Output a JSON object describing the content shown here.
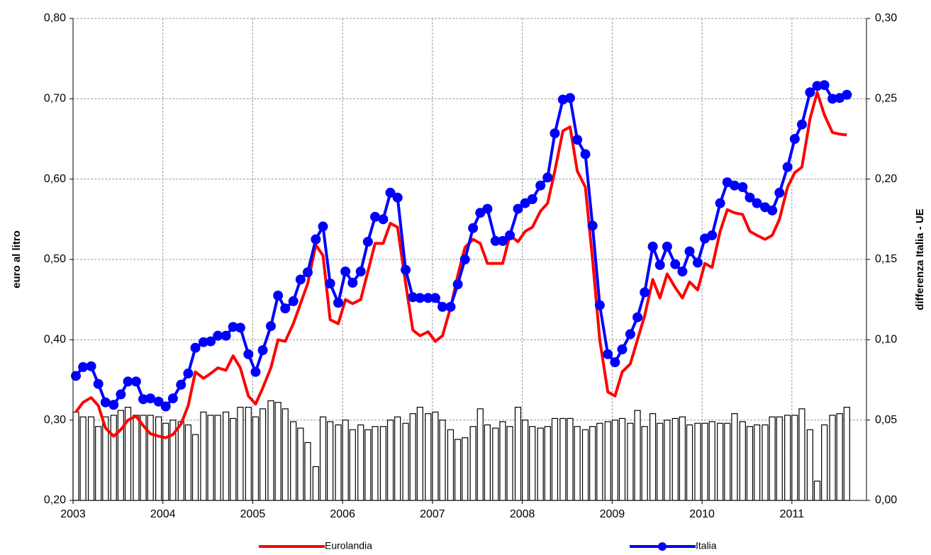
{
  "chart_data": {
    "type": "line",
    "y_label": "euro al litro",
    "y2_label": "differenza Italia - UE",
    "xlim": [
      2003,
      2011.83
    ],
    "xticks": [
      2003,
      2004,
      2005,
      2006,
      2007,
      2008,
      2009,
      2010,
      2011
    ],
    "ylim": [
      0.2,
      0.8
    ],
    "yticks": [
      {
        "value": 0.2,
        "label": "0,20"
      },
      {
        "value": 0.3,
        "label": "0,30"
      },
      {
        "value": 0.4,
        "label": "0,40"
      },
      {
        "value": 0.5,
        "label": "0,50"
      },
      {
        "value": 0.6,
        "label": "0,60"
      },
      {
        "value": 0.7,
        "label": "0,70"
      },
      {
        "value": 0.8,
        "label": "0,80"
      }
    ],
    "y2lim": [
      0,
      0.3
    ],
    "y2ticks": [
      {
        "value": 0,
        "label": "0,00"
      },
      {
        "value": 0.05,
        "label": "0,05"
      },
      {
        "value": 0.1,
        "label": "0,10"
      },
      {
        "value": 0.15,
        "label": "0,15"
      },
      {
        "value": 0.2,
        "label": "0,20"
      },
      {
        "value": 0.25,
        "label": "0,25"
      },
      {
        "value": 0.3,
        "label": "0,30"
      }
    ],
    "grid": true,
    "legend": "bottom",
    "x": [
      2003,
      2003.08,
      2003.17,
      2003.25,
      2003.33,
      2003.42,
      2003.5,
      2003.58,
      2003.67,
      2003.75,
      2003.83,
      2003.92,
      2004,
      2004.08,
      2004.17,
      2004.25,
      2004.33,
      2004.42,
      2004.5,
      2004.58,
      2004.67,
      2004.75,
      2004.83,
      2004.92,
      2005,
      2005.08,
      2005.17,
      2005.25,
      2005.33,
      2005.42,
      2005.5,
      2005.58,
      2005.67,
      2005.75,
      2005.83,
      2005.92,
      2006,
      2006.08,
      2006.17,
      2006.25,
      2006.33,
      2006.42,
      2006.5,
      2006.58,
      2006.67,
      2006.75,
      2006.83,
      2006.92,
      2007,
      2007.08,
      2007.17,
      2007.25,
      2007.33,
      2007.42,
      2007.5,
      2007.58,
      2007.67,
      2007.75,
      2007.83,
      2007.92,
      2008,
      2008.08,
      2008.17,
      2008.25,
      2008.33,
      2008.42,
      2008.5,
      2008.58,
      2008.67,
      2008.75,
      2008.83,
      2008.92,
      2009,
      2009.08,
      2009.17,
      2009.25,
      2009.33,
      2009.42,
      2009.5,
      2009.58,
      2009.67,
      2009.75,
      2009.83,
      2009.92,
      2010,
      2010.08,
      2010.17,
      2010.25,
      2010.33,
      2010.42,
      2010.5,
      2010.58,
      2010.67,
      2010.75,
      2010.83,
      2010.92,
      2011,
      2011.08,
      2011.17,
      2011.25,
      2011.33,
      2011.42,
      2011.5,
      2011.58
    ],
    "series": [
      {
        "name": "Eurolandia",
        "color": "#ff0000",
        "values": [
          0.31,
          0.322,
          0.328,
          0.318,
          0.29,
          0.28,
          0.288,
          0.3,
          0.305,
          0.293,
          0.283,
          0.28,
          0.278,
          0.282,
          0.295,
          0.318,
          0.36,
          0.352,
          0.358,
          0.365,
          0.362,
          0.38,
          0.365,
          0.33,
          0.32,
          0.34,
          0.365,
          0.4,
          0.398,
          0.42,
          0.445,
          0.47,
          0.518,
          0.505,
          0.425,
          0.42,
          0.45,
          0.445,
          0.45,
          0.485,
          0.52,
          0.52,
          0.545,
          0.54,
          0.47,
          0.412,
          0.405,
          0.41,
          0.398,
          0.405,
          0.44,
          0.48,
          0.515,
          0.525,
          0.52,
          0.495,
          0.495,
          0.495,
          0.53,
          0.522,
          0.535,
          0.54,
          0.56,
          0.57,
          0.61,
          0.66,
          0.665,
          0.61,
          0.59,
          0.5,
          0.4,
          0.335,
          0.33,
          0.36,
          0.37,
          0.4,
          0.43,
          0.475,
          0.452,
          0.482,
          0.465,
          0.452,
          0.472,
          0.462,
          0.495,
          0.49,
          0.535,
          0.562,
          0.558,
          0.556,
          0.535,
          0.53,
          0.525,
          0.53,
          0.55,
          0.59,
          0.608,
          0.615,
          0.675,
          0.708,
          0.68,
          0.658,
          0.656,
          0.655
        ]
      },
      {
        "name": "Italia",
        "color": "#0000ff",
        "values": [
          0.355,
          0.366,
          0.367,
          0.345,
          0.322,
          0.319,
          0.332,
          0.348,
          0.348,
          0.326,
          0.327,
          0.323,
          0.317,
          0.327,
          0.344,
          0.358,
          0.39,
          0.397,
          0.398,
          0.405,
          0.405,
          0.416,
          0.415,
          0.382,
          0.36,
          0.387,
          0.417,
          0.455,
          0.439,
          0.448,
          0.475,
          0.484,
          0.525,
          0.541,
          0.47,
          0.446,
          0.485,
          0.471,
          0.485,
          0.522,
          0.553,
          0.55,
          0.583,
          0.577,
          0.487,
          0.453,
          0.452,
          0.452,
          0.452,
          0.441,
          0.441,
          0.469,
          0.5,
          0.539,
          0.558,
          0.563,
          0.523,
          0.523,
          0.53,
          0.563,
          0.57,
          0.575,
          0.592,
          0.602,
          0.657,
          0.699,
          0.701,
          0.649,
          0.631,
          0.542,
          0.443,
          0.382,
          0.372,
          0.388,
          0.407,
          0.428,
          0.459,
          0.516,
          0.493,
          0.516,
          0.494,
          0.485,
          0.51,
          0.496,
          0.526,
          0.53,
          0.57,
          0.596,
          0.592,
          0.59,
          0.577,
          0.57,
          0.565,
          0.561,
          0.583,
          0.615,
          0.65,
          0.668,
          0.708,
          0.716,
          0.717,
          0.7,
          0.701,
          0.705
        ]
      },
      {
        "type": "bar",
        "axis": "y2",
        "color": "#ffffff",
        "values": [
          0.055,
          0.052,
          0.052,
          0.046,
          0.052,
          0.053,
          0.056,
          0.058,
          0.053,
          0.053,
          0.053,
          0.052,
          0.048,
          0.05,
          0.049,
          0.047,
          0.041,
          0.055,
          0.053,
          0.053,
          0.055,
          0.051,
          0.058,
          0.058,
          0.052,
          0.057,
          0.062,
          0.061,
          0.057,
          0.049,
          0.045,
          0.036,
          0.021,
          0.052,
          0.049,
          0.047,
          0.05,
          0.044,
          0.047,
          0.044,
          0.046,
          0.046,
          0.05,
          0.052,
          0.048,
          0.054,
          0.058,
          0.054,
          0.055,
          0.05,
          0.044,
          0.038,
          0.039,
          0.046,
          0.057,
          0.047,
          0.045,
          0.049,
          0.046,
          0.058,
          0.05,
          0.046,
          0.045,
          0.046,
          0.051,
          0.051,
          0.051,
          0.046,
          0.044,
          0.046,
          0.048,
          0.049,
          0.05,
          0.051,
          0.048,
          0.056,
          0.046,
          0.054,
          0.048,
          0.05,
          0.051,
          0.052,
          0.047,
          0.048,
          0.048,
          0.049,
          0.048,
          0.048,
          0.054,
          0.049,
          0.046,
          0.047,
          0.047,
          0.052,
          0.052,
          0.053,
          0.053,
          0.057,
          0.044,
          0.012,
          0.047,
          0.053,
          0.054,
          0.058
        ]
      }
    ]
  }
}
